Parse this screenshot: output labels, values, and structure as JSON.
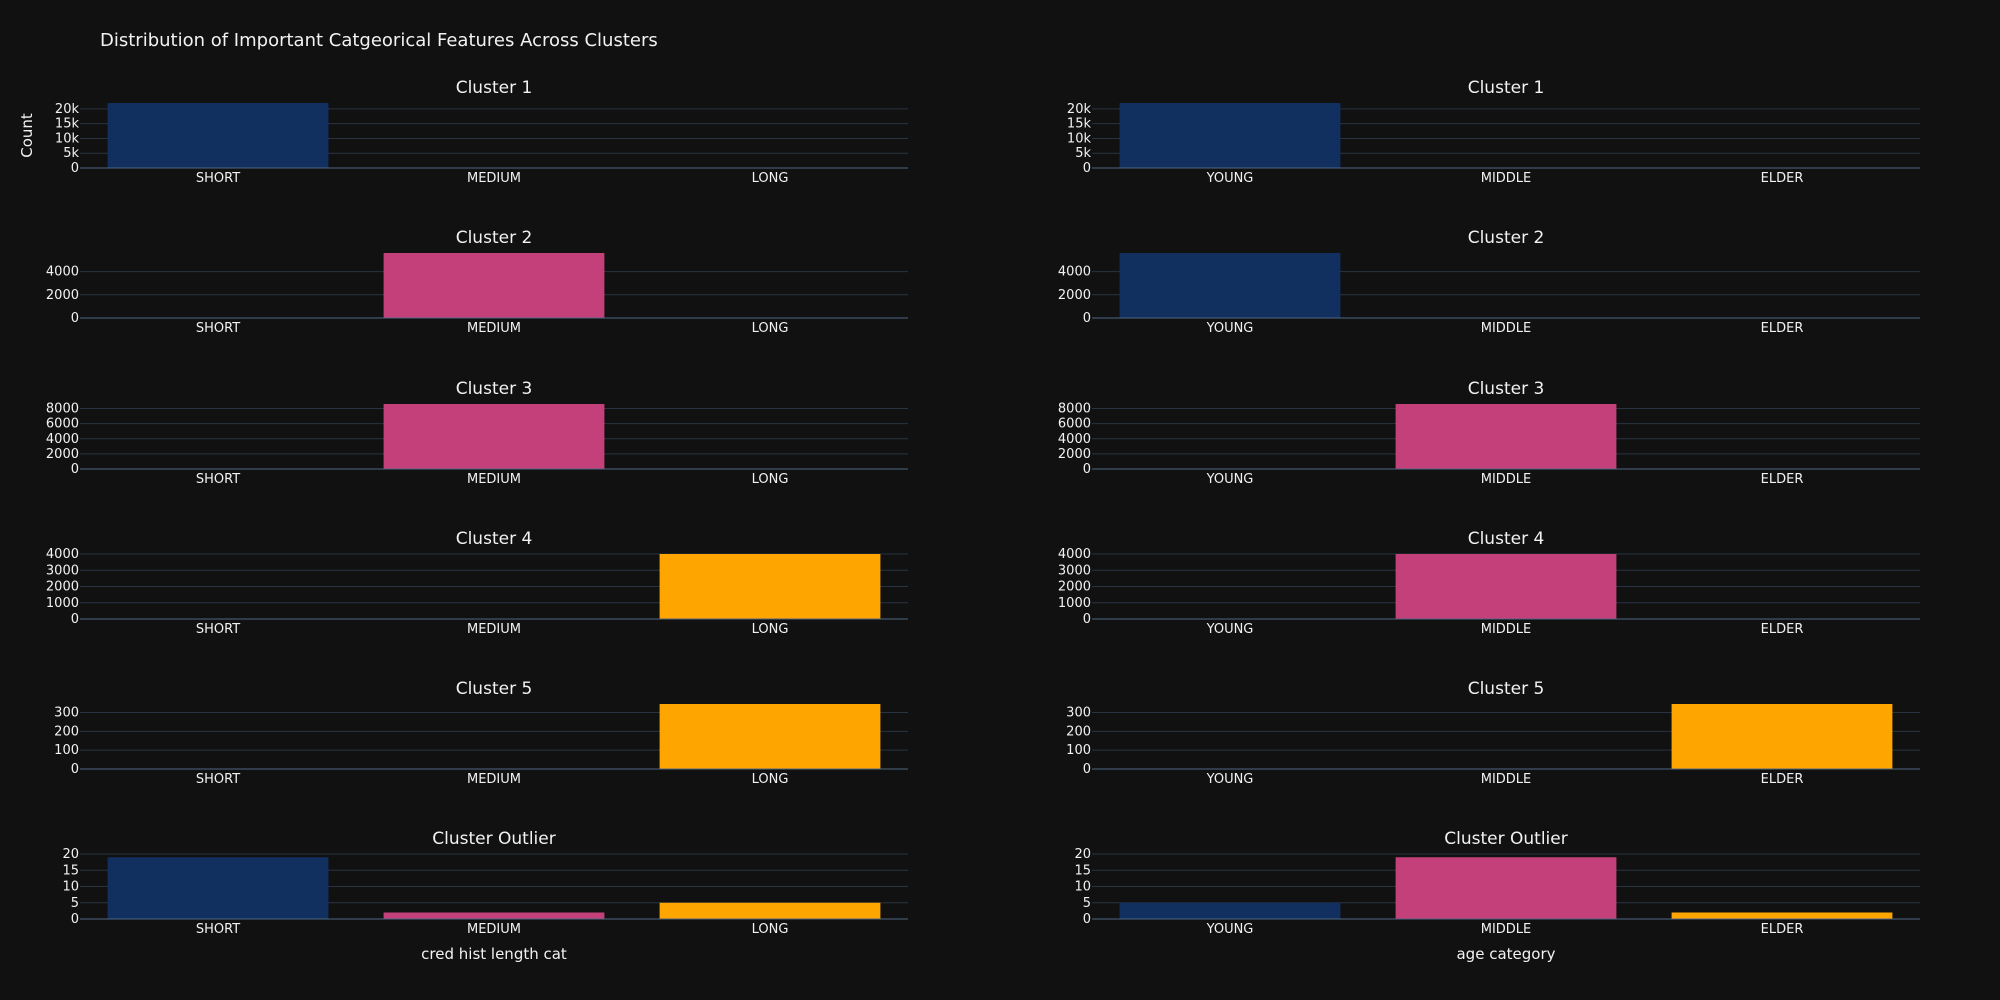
{
  "title": "Distribution of Important Catgeorical Features Across Clusters",
  "y_axis_label": "Count",
  "colors": {
    "background": "#111111",
    "grid": "#283442",
    "text": "#f2f2f2",
    "cat_1": "#12305f",
    "cat_2": "#c4407a",
    "cat_3": "#ffa500"
  },
  "chart_data": [
    {
      "type": "bar",
      "column": "left",
      "row": 1,
      "title": "Cluster 1",
      "xlabel": "",
      "ylabel": "Count",
      "categories": [
        "SHORT",
        "MEDIUM",
        "LONG"
      ],
      "values": [
        22000,
        0,
        0
      ],
      "ylim": [
        0,
        22000
      ],
      "ticks": [
        0,
        5000,
        10000,
        15000,
        20000
      ],
      "tick_labels": [
        "0",
        "5k",
        "10k",
        "15k",
        "20k"
      ]
    },
    {
      "type": "bar",
      "column": "right",
      "row": 1,
      "title": "Cluster 1",
      "xlabel": "",
      "ylabel": "",
      "categories": [
        "YOUNG",
        "MIDDLE",
        "ELDER"
      ],
      "values": [
        22000,
        0,
        0
      ],
      "ylim": [
        0,
        22000
      ],
      "ticks": [
        0,
        5000,
        10000,
        15000,
        20000
      ],
      "tick_labels": [
        "0",
        "5k",
        "10k",
        "15k",
        "20k"
      ]
    },
    {
      "type": "bar",
      "column": "left",
      "row": 2,
      "title": "Cluster 2",
      "xlabel": "",
      "ylabel": "",
      "categories": [
        "SHORT",
        "MEDIUM",
        "LONG"
      ],
      "values": [
        0,
        5600,
        0
      ],
      "ylim": [
        0,
        5600
      ],
      "ticks": [
        0,
        2000,
        4000
      ],
      "tick_labels": [
        "0",
        "2000",
        "4000"
      ]
    },
    {
      "type": "bar",
      "column": "right",
      "row": 2,
      "title": "Cluster 2",
      "xlabel": "",
      "ylabel": "",
      "categories": [
        "YOUNG",
        "MIDDLE",
        "ELDER"
      ],
      "values": [
        5600,
        0,
        0
      ],
      "ylim": [
        0,
        5600
      ],
      "ticks": [
        0,
        2000,
        4000
      ],
      "tick_labels": [
        "0",
        "2000",
        "4000"
      ]
    },
    {
      "type": "bar",
      "column": "left",
      "row": 3,
      "title": "Cluster 3",
      "xlabel": "",
      "ylabel": "",
      "categories": [
        "SHORT",
        "MEDIUM",
        "LONG"
      ],
      "values": [
        0,
        8600,
        0
      ],
      "ylim": [
        0,
        8600
      ],
      "ticks": [
        0,
        2000,
        4000,
        6000,
        8000
      ],
      "tick_labels": [
        "0",
        "2000",
        "4000",
        "6000",
        "8000"
      ]
    },
    {
      "type": "bar",
      "column": "right",
      "row": 3,
      "title": "Cluster 3",
      "xlabel": "",
      "ylabel": "",
      "categories": [
        "YOUNG",
        "MIDDLE",
        "ELDER"
      ],
      "values": [
        0,
        8600,
        0
      ],
      "ylim": [
        0,
        8600
      ],
      "ticks": [
        0,
        2000,
        4000,
        6000,
        8000
      ],
      "tick_labels": [
        "0",
        "2000",
        "4000",
        "6000",
        "8000"
      ]
    },
    {
      "type": "bar",
      "column": "left",
      "row": 4,
      "title": "Cluster 4",
      "xlabel": "",
      "ylabel": "",
      "categories": [
        "SHORT",
        "MEDIUM",
        "LONG"
      ],
      "values": [
        0,
        0,
        4000
      ],
      "ylim": [
        0,
        4000
      ],
      "ticks": [
        0,
        1000,
        2000,
        3000,
        4000
      ],
      "tick_labels": [
        "0",
        "1000",
        "2000",
        "3000",
        "4000"
      ]
    },
    {
      "type": "bar",
      "column": "right",
      "row": 4,
      "title": "Cluster 4",
      "xlabel": "",
      "ylabel": "",
      "categories": [
        "YOUNG",
        "MIDDLE",
        "ELDER"
      ],
      "values": [
        0,
        4000,
        0
      ],
      "ylim": [
        0,
        4000
      ],
      "ticks": [
        0,
        1000,
        2000,
        3000,
        4000
      ],
      "tick_labels": [
        "0",
        "1000",
        "2000",
        "3000",
        "4000"
      ]
    },
    {
      "type": "bar",
      "column": "left",
      "row": 5,
      "title": "Cluster 5",
      "xlabel": "",
      "ylabel": "",
      "categories": [
        "SHORT",
        "MEDIUM",
        "LONG"
      ],
      "values": [
        0,
        0,
        345
      ],
      "ylim": [
        0,
        345
      ],
      "ticks": [
        0,
        100,
        200,
        300
      ],
      "tick_labels": [
        "0",
        "100",
        "200",
        "300"
      ]
    },
    {
      "type": "bar",
      "column": "right",
      "row": 5,
      "title": "Cluster 5",
      "xlabel": "",
      "ylabel": "",
      "categories": [
        "YOUNG",
        "MIDDLE",
        "ELDER"
      ],
      "values": [
        0,
        0,
        345
      ],
      "ylim": [
        0,
        345
      ],
      "ticks": [
        0,
        100,
        200,
        300
      ],
      "tick_labels": [
        "0",
        "100",
        "200",
        "300"
      ]
    },
    {
      "type": "bar",
      "column": "left",
      "row": 6,
      "title": "Cluster Outlier",
      "xlabel": "cred hist length cat",
      "ylabel": "",
      "categories": [
        "SHORT",
        "MEDIUM",
        "LONG"
      ],
      "values": [
        19,
        2,
        5
      ],
      "ylim": [
        0,
        20
      ],
      "ticks": [
        0,
        5,
        10,
        15,
        20
      ],
      "tick_labels": [
        "0",
        "5",
        "10",
        "15",
        "20"
      ]
    },
    {
      "type": "bar",
      "column": "right",
      "row": 6,
      "title": "Cluster Outlier",
      "xlabel": "age category",
      "ylabel": "",
      "categories": [
        "YOUNG",
        "MIDDLE",
        "ELDER"
      ],
      "values": [
        5,
        19,
        2
      ],
      "ylim": [
        0,
        20
      ],
      "ticks": [
        0,
        5,
        10,
        15,
        20
      ],
      "tick_labels": [
        "0",
        "5",
        "10",
        "15",
        "20"
      ]
    }
  ]
}
